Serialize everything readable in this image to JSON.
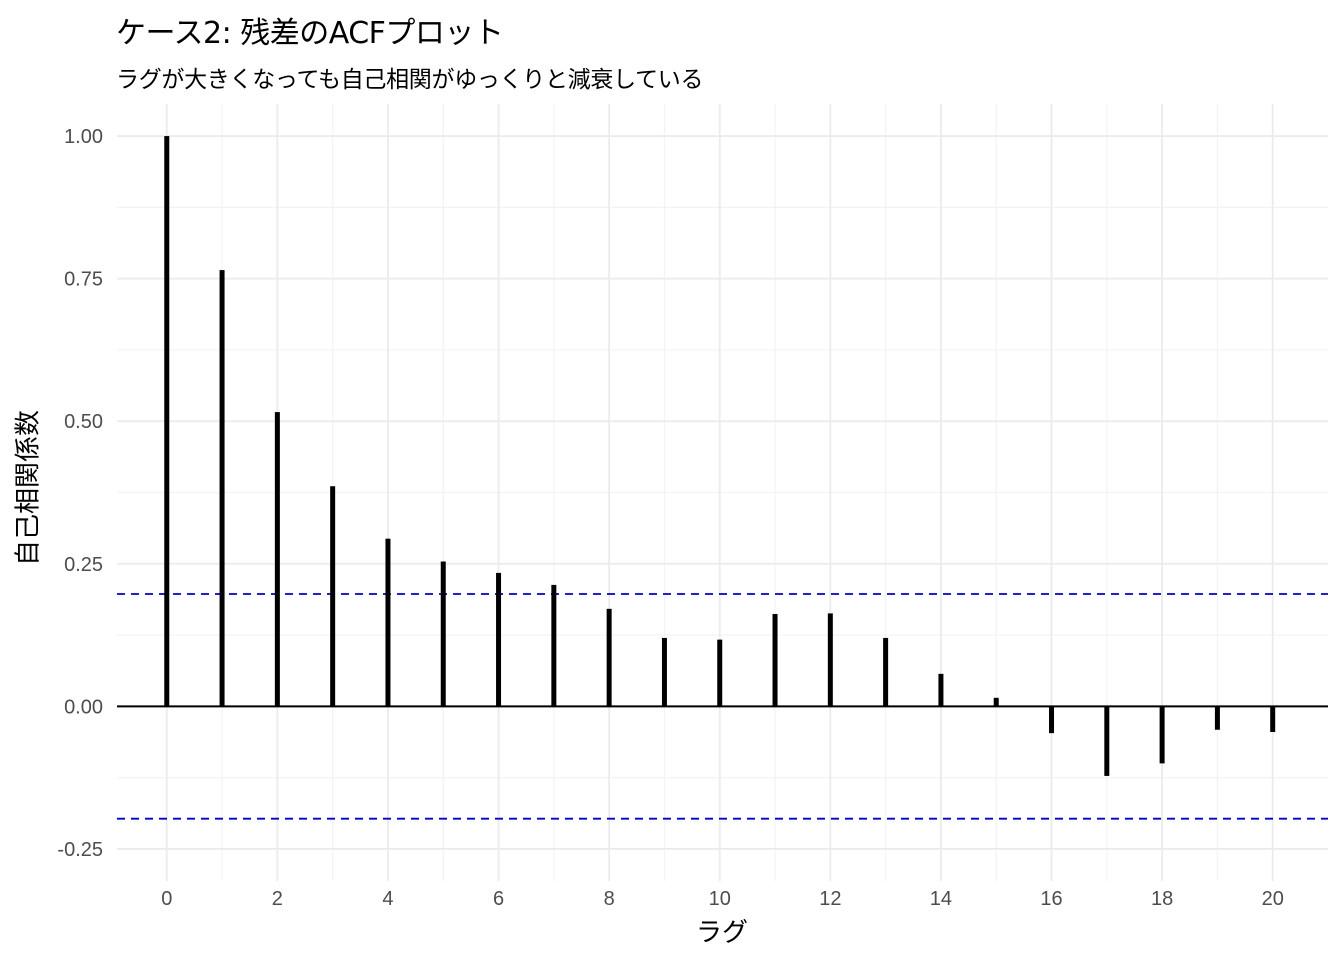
{
  "chart_data": {
    "type": "bar",
    "title": "ケース2: 残差のACFプロット",
    "subtitle": "ラグが大きくなっても自己相関がゆっくりと減衰している",
    "xlabel": "ラグ",
    "ylabel": "自己相関係数",
    "x": [
      0,
      1,
      2,
      3,
      4,
      5,
      6,
      7,
      8,
      9,
      10,
      11,
      12,
      13,
      14,
      15,
      16,
      17,
      18,
      19,
      20
    ],
    "values": [
      1.0,
      0.765,
      0.516,
      0.386,
      0.294,
      0.254,
      0.234,
      0.213,
      0.171,
      0.12,
      0.117,
      0.162,
      0.163,
      0.12,
      0.057,
      0.015,
      -0.047,
      -0.122,
      -0.1,
      -0.041,
      -0.045
    ],
    "confidence_bounds": [
      0.197,
      -0.197
    ],
    "xlim": [
      -0.9,
      21.0
    ],
    "ylim": [
      -0.25,
      1.0
    ],
    "x_ticks": [
      0,
      2,
      4,
      6,
      8,
      10,
      12,
      14,
      16,
      18,
      20
    ],
    "x_tick_labels": [
      "0",
      "2",
      "4",
      "6",
      "8",
      "10",
      "12",
      "14",
      "16",
      "18",
      "20"
    ],
    "y_ticks": [
      -0.25,
      0.0,
      0.25,
      0.5,
      0.75,
      1.0
    ],
    "y_tick_labels": [
      "-0.25",
      "0.00",
      "0.25",
      "0.50",
      "0.75",
      "1.00"
    ],
    "grid": true,
    "colors": {
      "bars": "#000000",
      "confidence": "#0000cc",
      "grid": "#ebebeb",
      "zero_line": "#000000"
    }
  }
}
